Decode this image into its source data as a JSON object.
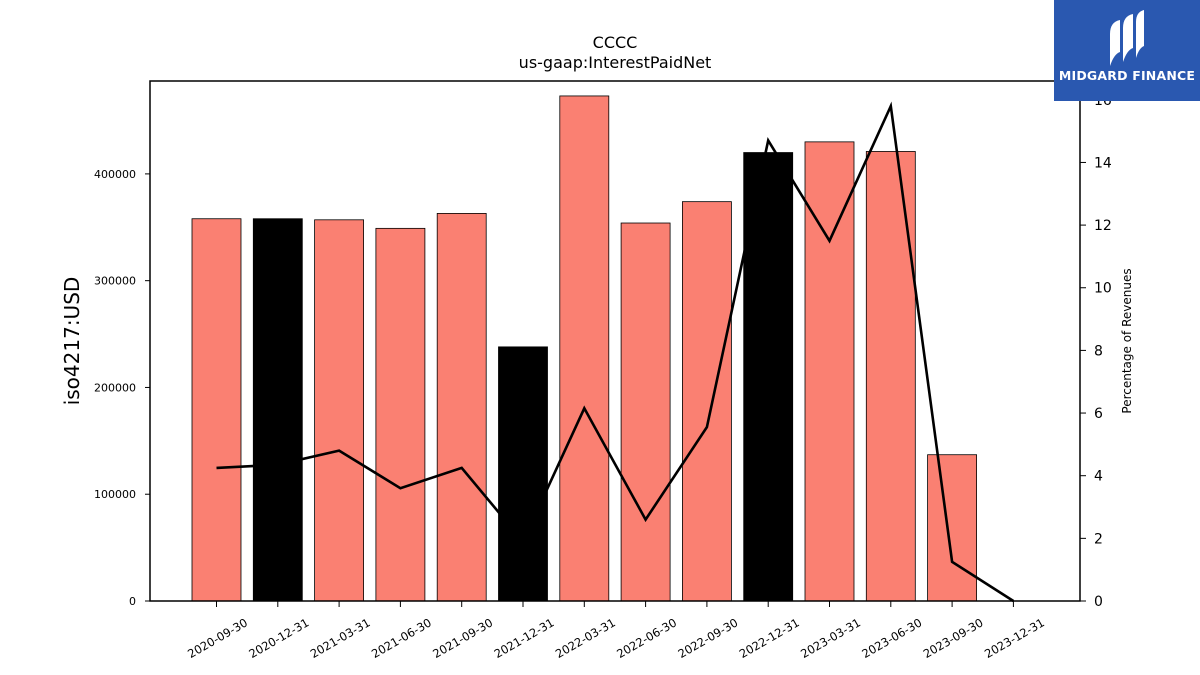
{
  "logo": {
    "text": "MIDGARD FINANCE"
  },
  "colors": {
    "bar_default": "#fa8072",
    "bar_highlight": "#000000",
    "line": "#000000",
    "logo_bg": "#2a58b0"
  },
  "chart_data": {
    "type": "bar",
    "title": "CCCC",
    "subtitle": "us-gaap:InterestPaidNet",
    "ylabel": "iso4217:USD",
    "y2label": "Percentage of Revenues",
    "categories": [
      "2020-09-30",
      "2020-12-31",
      "2021-03-31",
      "2021-06-30",
      "2021-09-30",
      "2021-12-31",
      "2022-03-31",
      "2022-06-30",
      "2022-09-30",
      "2022-12-31",
      "2023-03-31",
      "2023-06-30",
      "2023-09-30",
      "2023-12-31"
    ],
    "values": [
      358000,
      358000,
      357000,
      349000,
      363000,
      238000,
      473000,
      354000,
      374000,
      420000,
      430000,
      421000,
      137000,
      null
    ],
    "highlight": [
      false,
      true,
      false,
      false,
      false,
      true,
      false,
      false,
      false,
      true,
      false,
      false,
      false,
      false
    ],
    "line_values": [
      4.25,
      4.35,
      4.8,
      3.6,
      4.25,
      1.9,
      6.15,
      2.6,
      5.55,
      14.7,
      11.5,
      15.8,
      1.25,
      0
    ],
    "ylim": [
      0,
      487000
    ],
    "yticks": [
      0,
      100000,
      200000,
      300000,
      400000
    ],
    "y2lim": [
      0,
      16.6
    ],
    "y2ticks": [
      0,
      2,
      4,
      6,
      8,
      10,
      12,
      14,
      16
    ],
    "grid": false,
    "legend": "none"
  }
}
